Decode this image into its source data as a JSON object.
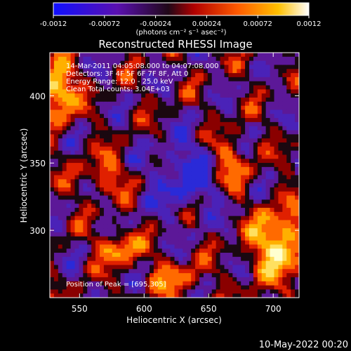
{
  "chart_data": {
    "type": "heatmap",
    "title": "Reconstructed RHESSI Image",
    "xlabel": "Heliocentric X (arcsec)",
    "ylabel": "Heliocentric Y (arcsec)",
    "xlim": [
      527,
      720
    ],
    "ylim": [
      250,
      432
    ],
    "x_ticks": [
      550,
      600,
      650,
      700
    ],
    "y_ticks": [
      300,
      350,
      400
    ],
    "colorbar": {
      "min": -0.0012,
      "max": 0.0012,
      "ticks": [
        "-0.0012",
        "-0.00072",
        "-0.00024",
        "0.00024",
        "0.00072",
        "0.0012"
      ],
      "unit_label": "(photons cm⁻² s⁻¹ asec⁻²)",
      "colors": [
        "#1a1aff",
        "#5a10b0",
        "#1a0a10",
        "#ff2a00",
        "#ff9a00",
        "#ffffff"
      ]
    },
    "annotations": [
      "14-Mar-2011 04:05:08.000 to 04:07:08.000",
      "Detectors: 3F 4F 5F 6F 7F 8F, Att 0",
      "Energy Range: 12.0 - 25.0 keV",
      "Clean     Total counts: 3.04E+03"
    ],
    "peak_label": "Position of Peak = [695,305]",
    "peak": [
      695,
      305
    ]
  },
  "timestamp": "10-May-2022 00:20"
}
